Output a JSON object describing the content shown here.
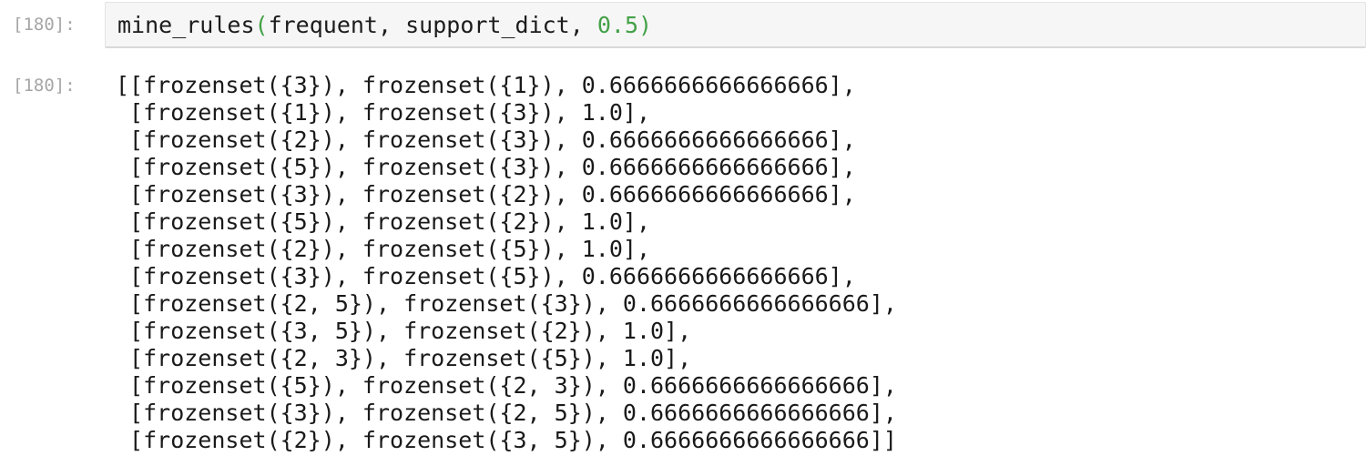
{
  "notebook": {
    "colors": {
      "green_accent": "#44a148",
      "prompt_gray": "#a6a6a6",
      "code_text": "#1c1c1c",
      "output_text": "#1a1a1a",
      "input_background": "#f6f6f6",
      "input_border": "#e3e3e3",
      "input_border_bottom": "#d9d9d9"
    },
    "input_cell": {
      "prompt": "[180]:",
      "code_text": "mine_rules(frequent, support_dict, 0.5)",
      "tokens": [
        {
          "type": "name",
          "text": "mine_rules"
        },
        {
          "type": "bracket",
          "text": "("
        },
        {
          "type": "plain",
          "text": "frequent"
        },
        {
          "type": "plain",
          "text": ", "
        },
        {
          "type": "plain",
          "text": "support_dict"
        },
        {
          "type": "plain",
          "text": ", "
        },
        {
          "type": "number",
          "text": "0.5"
        },
        {
          "type": "bracket",
          "text": ")"
        }
      ]
    },
    "output_cell": {
      "prompt": "[180]:",
      "lines": [
        "[[frozenset({3}), frozenset({1}), 0.6666666666666666],",
        " [frozenset({1}), frozenset({3}), 1.0],",
        " [frozenset({2}), frozenset({3}), 0.6666666666666666],",
        " [frozenset({5}), frozenset({3}), 0.6666666666666666],",
        " [frozenset({3}), frozenset({2}), 0.6666666666666666],",
        " [frozenset({5}), frozenset({2}), 1.0],",
        " [frozenset({2}), frozenset({5}), 1.0],",
        " [frozenset({3}), frozenset({5}), 0.6666666666666666],",
        " [frozenset({2, 5}), frozenset({3}), 0.6666666666666666],",
        " [frozenset({3, 5}), frozenset({2}), 1.0],",
        " [frozenset({2, 3}), frozenset({5}), 1.0],",
        " [frozenset({5}), frozenset({2, 3}), 0.6666666666666666],",
        " [frozenset({3}), frozenset({2, 5}), 0.6666666666666666],",
        " [frozenset({2}), frozenset({3, 5}), 0.6666666666666666]]"
      ]
    }
  }
}
